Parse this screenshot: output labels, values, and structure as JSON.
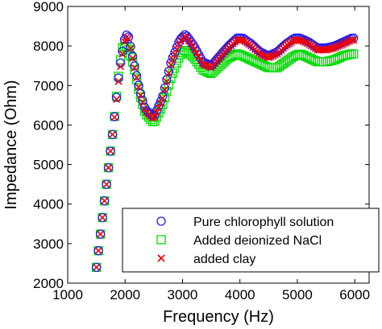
{
  "chart_data": {
    "type": "scatter",
    "title": "",
    "xlabel": "Frequency (Hz)",
    "ylabel": "Impedance (Ohm)",
    "xlim": [
      1000,
      6250
    ],
    "ylim": [
      2000,
      9000
    ],
    "xticks": [
      1000,
      2000,
      3000,
      4000,
      5000,
      6000
    ],
    "yticks": [
      2000,
      3000,
      4000,
      5000,
      6000,
      7000,
      8000,
      9000
    ],
    "xtick_labels": [
      "1000",
      "2000",
      "3000",
      "4000",
      "5000",
      "6000"
    ],
    "ytick_labels": [
      "2000",
      "3000",
      "4000",
      "5000",
      "6000",
      "7000",
      "8000",
      "9000"
    ],
    "grid": false,
    "legend_position": "bottom-right",
    "series": [
      {
        "name": "Pure chlorophyll solution",
        "marker": "circle",
        "color": "#1a1aff",
        "x": [
          1500,
          1800,
          1900,
          2000,
          2050,
          2150,
          2250,
          2350,
          2500,
          2650,
          2800,
          2950,
          3050,
          3200,
          3350,
          3500,
          3650,
          3800,
          3950,
          4050,
          4200,
          4350,
          4500,
          4650,
          4800,
          4950,
          5050,
          5200,
          5350,
          5500,
          5650,
          5800,
          5950,
          6000
        ],
        "y": [
          2400,
          6000,
          7400,
          8250,
          8300,
          7600,
          6900,
          6400,
          6200,
          6700,
          7600,
          8150,
          8300,
          8000,
          7600,
          7500,
          7750,
          8000,
          8200,
          8200,
          8050,
          7850,
          7750,
          7850,
          8050,
          8200,
          8200,
          8100,
          7950,
          7950,
          8000,
          8100,
          8200,
          8200
        ]
      },
      {
        "name": "Added deionized NaCl",
        "marker": "square",
        "color": "#00dd00",
        "x": [
          1500,
          1800,
          1900,
          1950,
          2000,
          2050,
          2150,
          2250,
          2350,
          2500,
          2650,
          2800,
          2950,
          3050,
          3200,
          3350,
          3500,
          3650,
          3800,
          3950,
          4050,
          4200,
          4350,
          4500,
          4650,
          4800,
          4950,
          5050,
          5200,
          5350,
          5500,
          5650,
          5800,
          5950,
          6000
        ],
        "y": [
          2400,
          6000,
          7450,
          7950,
          8000,
          7950,
          7500,
          6800,
          6300,
          6050,
          6500,
          7200,
          7750,
          7900,
          7700,
          7400,
          7300,
          7500,
          7700,
          7800,
          7750,
          7650,
          7550,
          7450,
          7450,
          7600,
          7750,
          7800,
          7700,
          7600,
          7600,
          7650,
          7750,
          7800,
          7800
        ]
      },
      {
        "name": "added clay",
        "marker": "x",
        "color": "#ee0000",
        "x": [
          1500,
          1800,
          1900,
          2000,
          2050,
          2150,
          2250,
          2350,
          2500,
          2650,
          2800,
          2950,
          3050,
          3200,
          3350,
          3500,
          3650,
          3800,
          3950,
          4050,
          4200,
          4350,
          4500,
          4650,
          4800,
          4950,
          5050,
          5200,
          5350,
          5500,
          5650,
          5800,
          5950,
          6000
        ],
        "y": [
          2400,
          6000,
          7300,
          8200,
          8250,
          7550,
          6850,
          6350,
          6150,
          6650,
          7550,
          8100,
          8250,
          7950,
          7550,
          7450,
          7700,
          7950,
          8150,
          8150,
          8000,
          7800,
          7700,
          7800,
          8000,
          8150,
          8150,
          8050,
          7900,
          7900,
          7950,
          8050,
          8150,
          8150
        ]
      }
    ]
  }
}
